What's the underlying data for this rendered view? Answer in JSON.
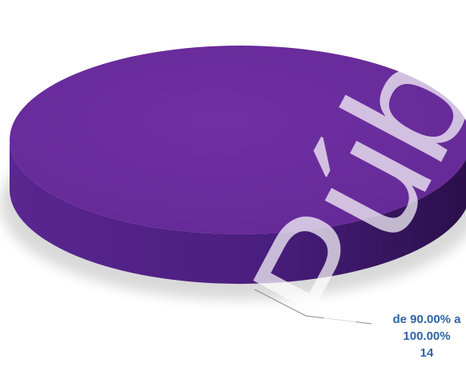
{
  "watermark": "Públ",
  "colors": {
    "slice_top": "#6d2d9e",
    "slice_side": "#4d2080",
    "label": "#2e64a8",
    "leader": "#8a8a8a"
  },
  "chart_data": {
    "type": "pie",
    "title": "",
    "slices": [
      {
        "label_line1": "de 90.00% a",
        "label_line2": "100.00%",
        "value": 14,
        "value_text": "14",
        "percent": 100
      }
    ],
    "legend": "none",
    "style": "3d"
  }
}
